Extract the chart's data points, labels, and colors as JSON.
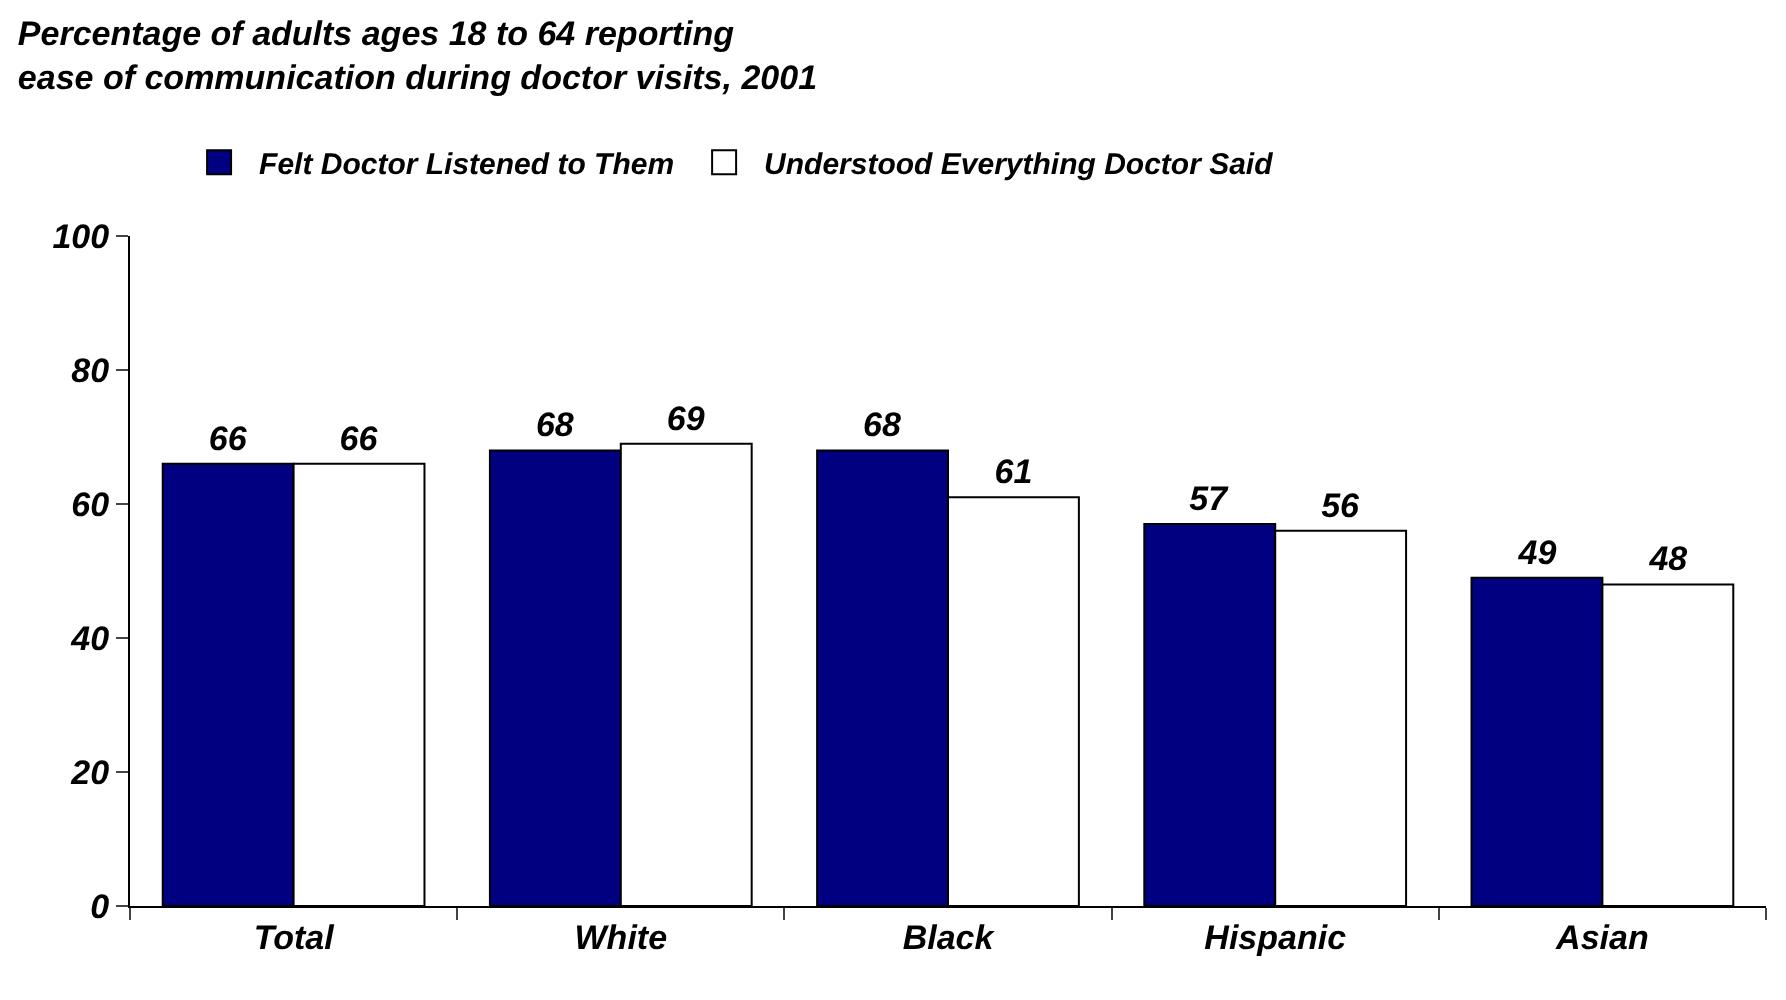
{
  "chart_data": {
    "type": "bar",
    "title": "Percentage of adults ages 18 to 64 reporting\nease of communication during doctor visits, 2001",
    "categories": [
      "Total",
      "White",
      "Black",
      "Hispanic",
      "Asian"
    ],
    "series": [
      {
        "name": "Felt Doctor Listened to Them",
        "color": "#000080",
        "values": [
          66,
          68,
          68,
          57,
          49
        ]
      },
      {
        "name": "Understood Everything Doctor Said",
        "color": "#ffffff",
        "values": [
          66,
          69,
          61,
          56,
          48
        ]
      }
    ],
    "ylim": [
      0,
      100
    ],
    "yticks": [
      0,
      20,
      40,
      60,
      80,
      100
    ],
    "grid": false,
    "legend": "top",
    "data_labels": true
  }
}
